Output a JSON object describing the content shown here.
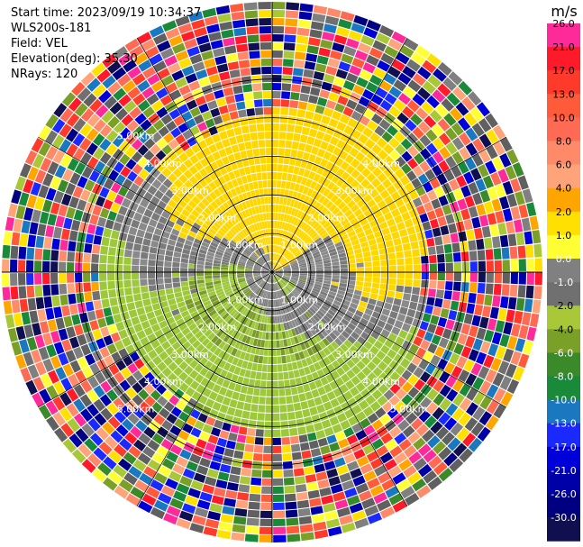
{
  "header": {
    "start_time": "Start time: 2023/09/19 10:34:37",
    "instrument": "WLS200s-181",
    "field": "Field: VEL",
    "elevation": "Elevation(deg): 35.30",
    "nrays": "NRays: 120"
  },
  "colorbar": {
    "unit": "m/s",
    "ticks": [
      "26.0",
      "21.0",
      "17.0",
      "13.0",
      "10.0",
      "8.0",
      "6.0",
      "4.0",
      "2.0",
      "1.0",
      "0.0",
      "-1.0",
      "-2.0",
      "-4.0",
      "-6.0",
      "-8.0",
      "-10.0",
      "-13.0",
      "-17.0",
      "-21.0",
      "-26.0",
      "-30.0"
    ],
    "colors": [
      "#ff2a9a",
      "#ff1a2a",
      "#ff3a2a",
      "#ff5a3a",
      "#ff6a55",
      "#ff8a6a",
      "#ffa47a",
      "#ffa500",
      "#ffe000",
      "#ffff33",
      "#808080",
      "#707070",
      "#a8c838",
      "#7aa028",
      "#3a8a2a",
      "#188a3a",
      "#1a78c0",
      "#1a2aff",
      "#0000d8",
      "#0000a8",
      "#000080",
      "#101050"
    ]
  },
  "chart_data": {
    "type": "ppi",
    "field": "VEL",
    "units": "m/s",
    "nrays": 120,
    "elevation_deg": 35.3,
    "range_rings_km": [
      1.0,
      2.0,
      3.0,
      4.0,
      5.0
    ],
    "ring_labels": [
      "1.00km",
      "2.00km",
      "3.00km",
      "4.00km",
      "5.00km"
    ],
    "ring_labels_ne": [
      "1.00km",
      "2.00km",
      "3.00km",
      "4.00km"
    ],
    "max_range_km": 7.0,
    "vmin": -30.0,
    "vmax": 26.0,
    "note_colors": {
      "positive_inner": "#ffd700",
      "negative_inner": "#9cc83a",
      "near_zero": "#808080"
    }
  }
}
